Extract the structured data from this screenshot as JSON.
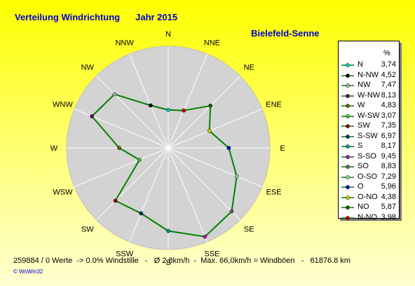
{
  "header": {
    "title": "Verteilung Windrichtung",
    "year": "Jahr 2015",
    "station": "Bielefeld-Senne"
  },
  "legend": {
    "unit": "%"
  },
  "chart_data": {
    "type": "radar",
    "title": "Verteilung Windrichtung   Jahr 2015",
    "unit": "%",
    "rmax": 10,
    "line_color": "#008000",
    "grid": false,
    "legend_position": "right",
    "directions": [
      {
        "label": "N",
        "value": 3.74,
        "color": "#00cccc"
      },
      {
        "label": "NNE",
        "value": 3.98,
        "color": "#cc0000"
      },
      {
        "label": "NE",
        "value": 5.87,
        "color": "#006600"
      },
      {
        "label": "ENE",
        "value": 4.38,
        "color": "#cccc00"
      },
      {
        "label": "E",
        "value": 5.96,
        "color": "#0000cc"
      },
      {
        "label": "ESE",
        "value": 7.29,
        "color": "#99cc99"
      },
      {
        "label": "SE",
        "value": 8.83,
        "color": "#666666"
      },
      {
        "label": "SSE",
        "value": 9.45,
        "color": "#cc00cc"
      },
      {
        "label": "S",
        "value": 8.17,
        "color": "#009999"
      },
      {
        "label": "SSW",
        "value": 6.97,
        "color": "#003366"
      },
      {
        "label": "SW",
        "value": 7.35,
        "color": "#990000"
      },
      {
        "label": "WSW",
        "value": 3.07,
        "color": "#33cc33"
      },
      {
        "label": "W",
        "value": 4.83,
        "color": "#666600"
      },
      {
        "label": "WNW",
        "value": 8.13,
        "color": "#660066"
      },
      {
        "label": "NW",
        "value": 7.47,
        "color": "#aaaaaa"
      },
      {
        "label": "NNW",
        "value": 4.52,
        "color": "#000000"
      }
    ],
    "compass_labels": [
      "N",
      "NNE",
      "NE",
      "ENE",
      "E",
      "ESE",
      "SE",
      "SSE",
      "S",
      "SSW",
      "SW",
      "WSW",
      "W",
      "WNW",
      "NW",
      "NNW"
    ],
    "legend_entries": [
      {
        "name": "N",
        "value": "3,74",
        "color": "#00cccc"
      },
      {
        "name": "N-NW",
        "value": "4,52",
        "color": "#000000"
      },
      {
        "name": "NW",
        "value": "7,47",
        "color": "#aaaaaa"
      },
      {
        "name": "W-NW",
        "value": "8,13",
        "color": "#660066"
      },
      {
        "name": "W",
        "value": "4,83",
        "color": "#666600"
      },
      {
        "name": "W-SW",
        "value": "3,07",
        "color": "#33cc33"
      },
      {
        "name": "SW",
        "value": "7,35",
        "color": "#990000"
      },
      {
        "name": "S-SW",
        "value": "6,97",
        "color": "#003366"
      },
      {
        "name": "S",
        "value": "8,17",
        "color": "#009999"
      },
      {
        "name": "S-SO",
        "value": "9,45",
        "color": "#cc00cc"
      },
      {
        "name": "SO",
        "value": "8,83",
        "color": "#666666"
      },
      {
        "name": "O-SO",
        "value": "7,29",
        "color": "#99cc99"
      },
      {
        "name": "O",
        "value": "5,96",
        "color": "#0000cc"
      },
      {
        "name": "O-NO",
        "value": "4,38",
        "color": "#cccc00"
      },
      {
        "name": "NO",
        "value": "5,87",
        "color": "#006600"
      },
      {
        "name": "N-NO",
        "value": "3,98",
        "color": "#cc0000"
      }
    ]
  },
  "footer": {
    "text": "259884 / 0 Werte  -> 0.0% Windstille   -   Ø 2,8km/h  -  Max. 66,0km/h = Windböen   -   61876.8 km",
    "brand": "© WsWin32"
  }
}
